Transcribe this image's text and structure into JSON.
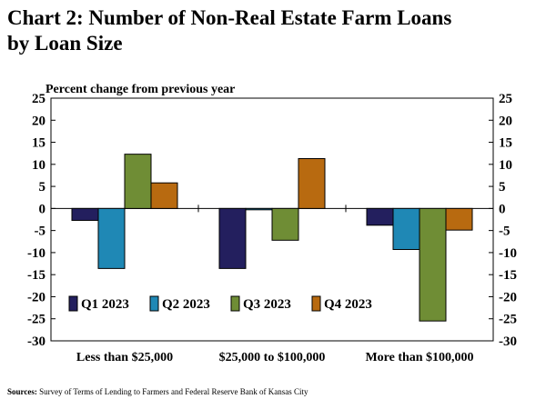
{
  "title_line1": "Chart 2: Number of Non-Real Estate Farm Loans",
  "title_line2": "by Loan Size",
  "sources_label": "Sources:",
  "sources_text": "Survey of Terms of Lending to Farmers and Federal Reserve Bank of Kansas City",
  "chart_data": {
    "type": "bar",
    "title": "Chart 2: Number of Non-Real Estate Farm Loans by Loan Size",
    "ylabel": "Percent change from previous year",
    "xlabel": "",
    "categories": [
      "Less than $25,000",
      "$25,000 to $100,000",
      "More than $100,000"
    ],
    "series": [
      {
        "name": "Q1 2023",
        "color": "#231f5e",
        "values": [
          -2.7,
          -13.6,
          -3.8
        ]
      },
      {
        "name": "Q2 2023",
        "color": "#1f88b5",
        "values": [
          -13.6,
          -0.3,
          -9.3
        ]
      },
      {
        "name": "Q3 2023",
        "color": "#6f8d35",
        "values": [
          12.3,
          -7.2,
          -25.5
        ]
      },
      {
        "name": "Q4 2023",
        "color": "#b86a10",
        "values": [
          5.8,
          11.3,
          -4.9
        ]
      }
    ],
    "ylim": [
      -30,
      25
    ],
    "yticks": [
      25,
      20,
      15,
      10,
      5,
      0,
      -5,
      -10,
      -15,
      -20,
      -25,
      -30
    ],
    "grid": false,
    "legend_position": "lower-left"
  }
}
